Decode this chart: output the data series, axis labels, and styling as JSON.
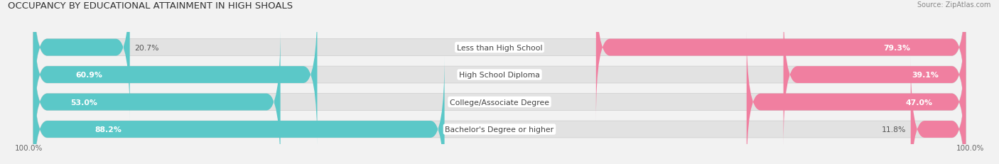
{
  "title": "OCCUPANCY BY EDUCATIONAL ATTAINMENT IN HIGH SHOALS",
  "source": "Source: ZipAtlas.com",
  "categories": [
    "Less than High School",
    "High School Diploma",
    "College/Associate Degree",
    "Bachelor's Degree or higher"
  ],
  "owner_pct": [
    20.7,
    60.9,
    53.0,
    88.2
  ],
  "renter_pct": [
    79.3,
    39.1,
    47.0,
    11.8
  ],
  "owner_color": "#5bc8c8",
  "renter_color": "#f07fa0",
  "bg_color": "#f2f2f2",
  "bar_bg_color": "#e2e2e2",
  "title_fontsize": 9.5,
  "label_fontsize": 7.8,
  "pct_fontsize": 7.8,
  "tick_fontsize": 7.5,
  "legend_fontsize": 8,
  "x_left_label": "100.0%",
  "x_right_label": "100.0%"
}
